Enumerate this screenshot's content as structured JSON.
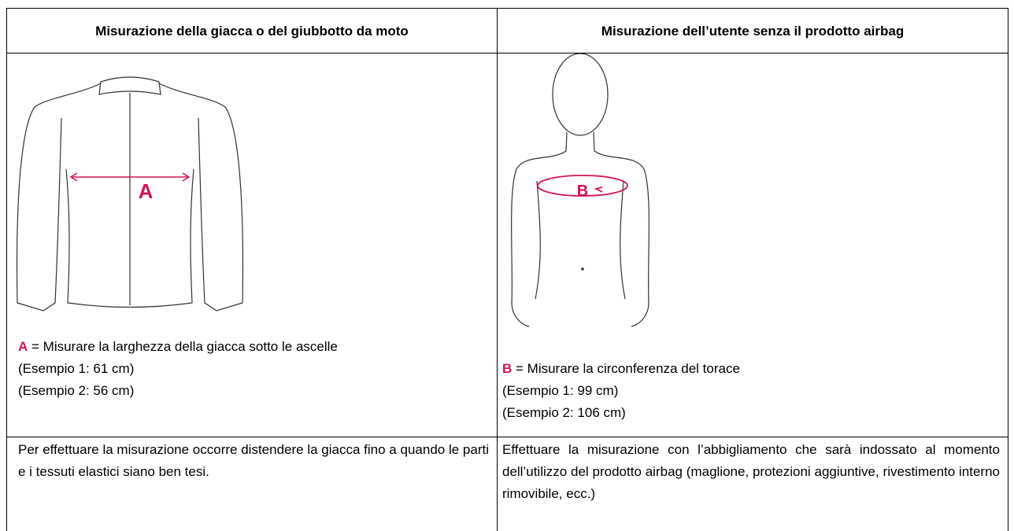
{
  "table": {
    "headers": [
      "Misurazione della giacca o del giubbotto da moto",
      "Misurazione dell’utente senza il prodotto airbag"
    ],
    "cells": [
      {
        "letter": "A",
        "description": "= Misurare la larghezza della giacca sotto le ascelle",
        "examples": [
          "(Esempio 1: 61 cm)",
          "(Esempio 2: 56 cm)"
        ]
      },
      {
        "letter": "B",
        "description": "= Misurare la circonferenza del torace",
        "examples": [
          "(Esempio 1: 99 cm)",
          "(Esempio 2: 106 cm)"
        ]
      }
    ],
    "notes": [
      "Per effettuare la misurazione occorre distendere la giacca fino a quando le parti e i tessuti elastici siano ben tesi.",
      "Effettuare la misurazione con l’abbigliamento che sarà indossato al momento dell’utilizzo del prodotto airbag (maglione, protezioni aggiuntive, rivestimento interno rimovibile, ecc.)"
    ]
  }
}
